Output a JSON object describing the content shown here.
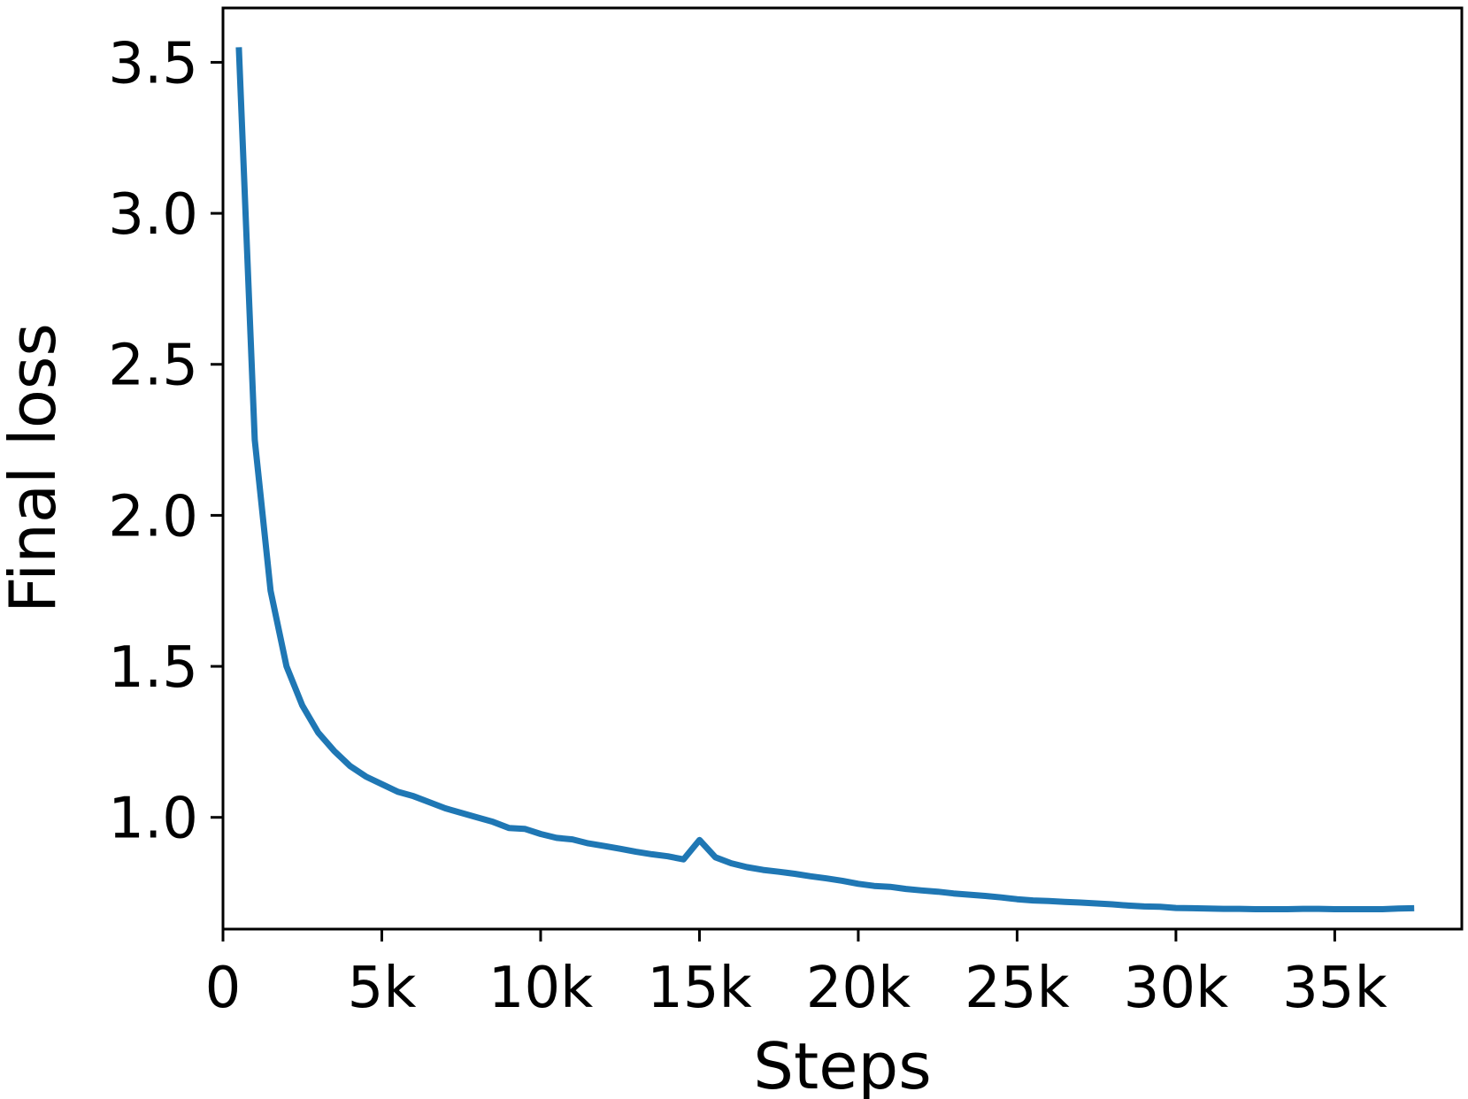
{
  "chart_data": {
    "type": "line",
    "title": "",
    "xlabel": "Steps",
    "ylabel": "Final loss",
    "xlim": [
      0,
      39000
    ],
    "ylim": [
      0.63,
      3.68
    ],
    "grid": false,
    "legend": "none",
    "x_ticks": [
      {
        "value": 0,
        "label": "0"
      },
      {
        "value": 5000,
        "label": "5k"
      },
      {
        "value": 10000,
        "label": "10k"
      },
      {
        "value": 15000,
        "label": "15k"
      },
      {
        "value": 20000,
        "label": "20k"
      },
      {
        "value": 25000,
        "label": "25k"
      },
      {
        "value": 30000,
        "label": "30k"
      },
      {
        "value": 35000,
        "label": "35k"
      }
    ],
    "y_ticks": [
      {
        "value": 1.0,
        "label": "1.0"
      },
      {
        "value": 1.5,
        "label": "1.5"
      },
      {
        "value": 2.0,
        "label": "2.0"
      },
      {
        "value": 2.5,
        "label": "2.5"
      },
      {
        "value": 3.0,
        "label": "3.0"
      },
      {
        "value": 3.5,
        "label": "3.5"
      }
    ],
    "series": [
      {
        "color": "#1f77b4",
        "x": [
          500,
          1000,
          1500,
          2000,
          2500,
          3000,
          3500,
          4000,
          4500,
          5000,
          5500,
          6000,
          6500,
          7000,
          7500,
          8000,
          8500,
          9000,
          9500,
          10000,
          10500,
          11000,
          11500,
          12000,
          12500,
          13000,
          13500,
          14000,
          14500,
          15000,
          15500,
          16000,
          16500,
          17000,
          17500,
          18000,
          18500,
          19000,
          19500,
          20000,
          20500,
          21000,
          21500,
          22000,
          22500,
          23000,
          23500,
          24000,
          24500,
          25000,
          25500,
          26000,
          26500,
          27000,
          27500,
          28000,
          28500,
          29000,
          29500,
          30000,
          30500,
          31000,
          31500,
          32000,
          32500,
          33000,
          33500,
          34000,
          34500,
          35000,
          35500,
          36000,
          36500,
          37000,
          37500
        ],
        "y": [
          3.55,
          2.25,
          1.75,
          1.5,
          1.37,
          1.28,
          1.22,
          1.17,
          1.135,
          1.11,
          1.085,
          1.07,
          1.05,
          1.03,
          1.015,
          1.0,
          0.985,
          0.965,
          0.962,
          0.945,
          0.932,
          0.927,
          0.914,
          0.905,
          0.896,
          0.886,
          0.878,
          0.871,
          0.861,
          0.925,
          0.868,
          0.848,
          0.835,
          0.826,
          0.82,
          0.813,
          0.805,
          0.798,
          0.79,
          0.78,
          0.773,
          0.77,
          0.763,
          0.758,
          0.754,
          0.748,
          0.744,
          0.74,
          0.735,
          0.729,
          0.725,
          0.723,
          0.72,
          0.718,
          0.715,
          0.712,
          0.708,
          0.705,
          0.704,
          0.7,
          0.699,
          0.698,
          0.697,
          0.697,
          0.696,
          0.696,
          0.696,
          0.697,
          0.697,
          0.696,
          0.696,
          0.696,
          0.696,
          0.698,
          0.699
        ]
      }
    ]
  }
}
